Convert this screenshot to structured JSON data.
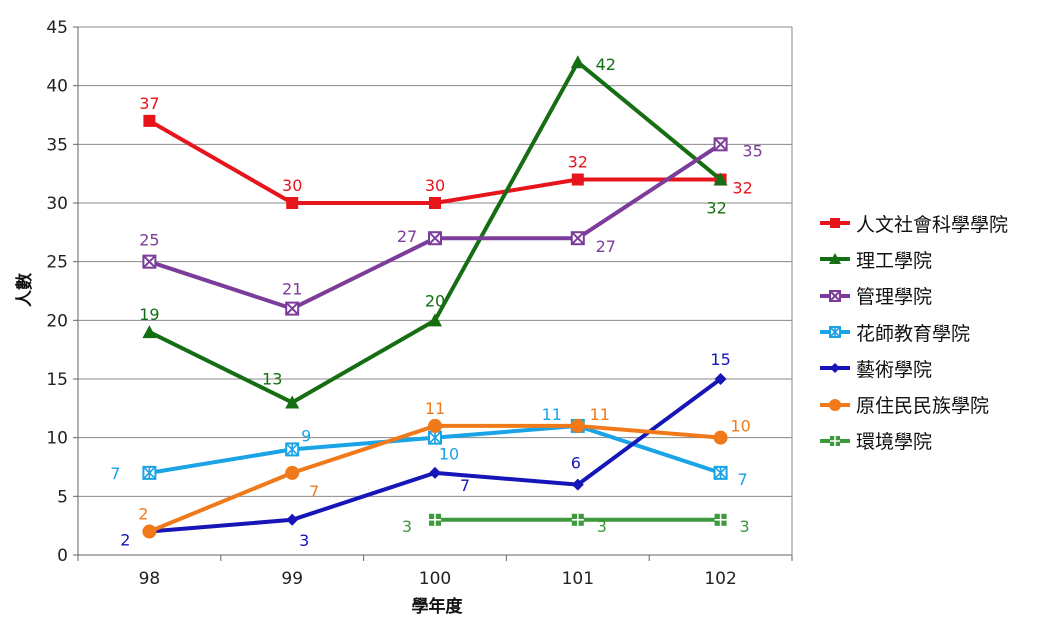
{
  "chart_data": {
    "type": "line",
    "xlabel": "學年度",
    "ylabel": "人數",
    "categories": [
      "98",
      "99",
      "100",
      "101",
      "102"
    ],
    "ylim": [
      0,
      45
    ],
    "yticks": [
      0,
      5,
      10,
      15,
      20,
      25,
      30,
      35,
      40,
      45
    ],
    "grid": "horizontal",
    "legend_position": "right",
    "series": [
      {
        "name": "人文社會科學學院",
        "color": "#e8141b",
        "marker": "square",
        "values": [
          37,
          30,
          30,
          32,
          32
        ]
      },
      {
        "name": "理工學院",
        "color": "#156e12",
        "marker": "triangle",
        "values": [
          19,
          13,
          20,
          42,
          32
        ]
      },
      {
        "name": "管理學院",
        "color": "#7b3d99",
        "marker": "x-square",
        "values": [
          25,
          21,
          27,
          27,
          35
        ]
      },
      {
        "name": "花師教育學院",
        "color": "#1aa3e6",
        "marker": "star-square",
        "values": [
          7,
          9,
          10,
          11,
          7
        ]
      },
      {
        "name": "藝術學院",
        "color": "#1515b8",
        "marker": "diamond",
        "values": [
          2,
          3,
          7,
          6,
          15
        ]
      },
      {
        "name": "原住民民族學院",
        "color": "#f07a1a",
        "marker": "circle",
        "values": [
          2,
          7,
          11,
          11,
          10
        ]
      },
      {
        "name": "環境學院",
        "color": "#3c9a3c",
        "marker": "plus-square",
        "values": [
          null,
          null,
          3,
          3,
          3
        ]
      }
    ]
  }
}
